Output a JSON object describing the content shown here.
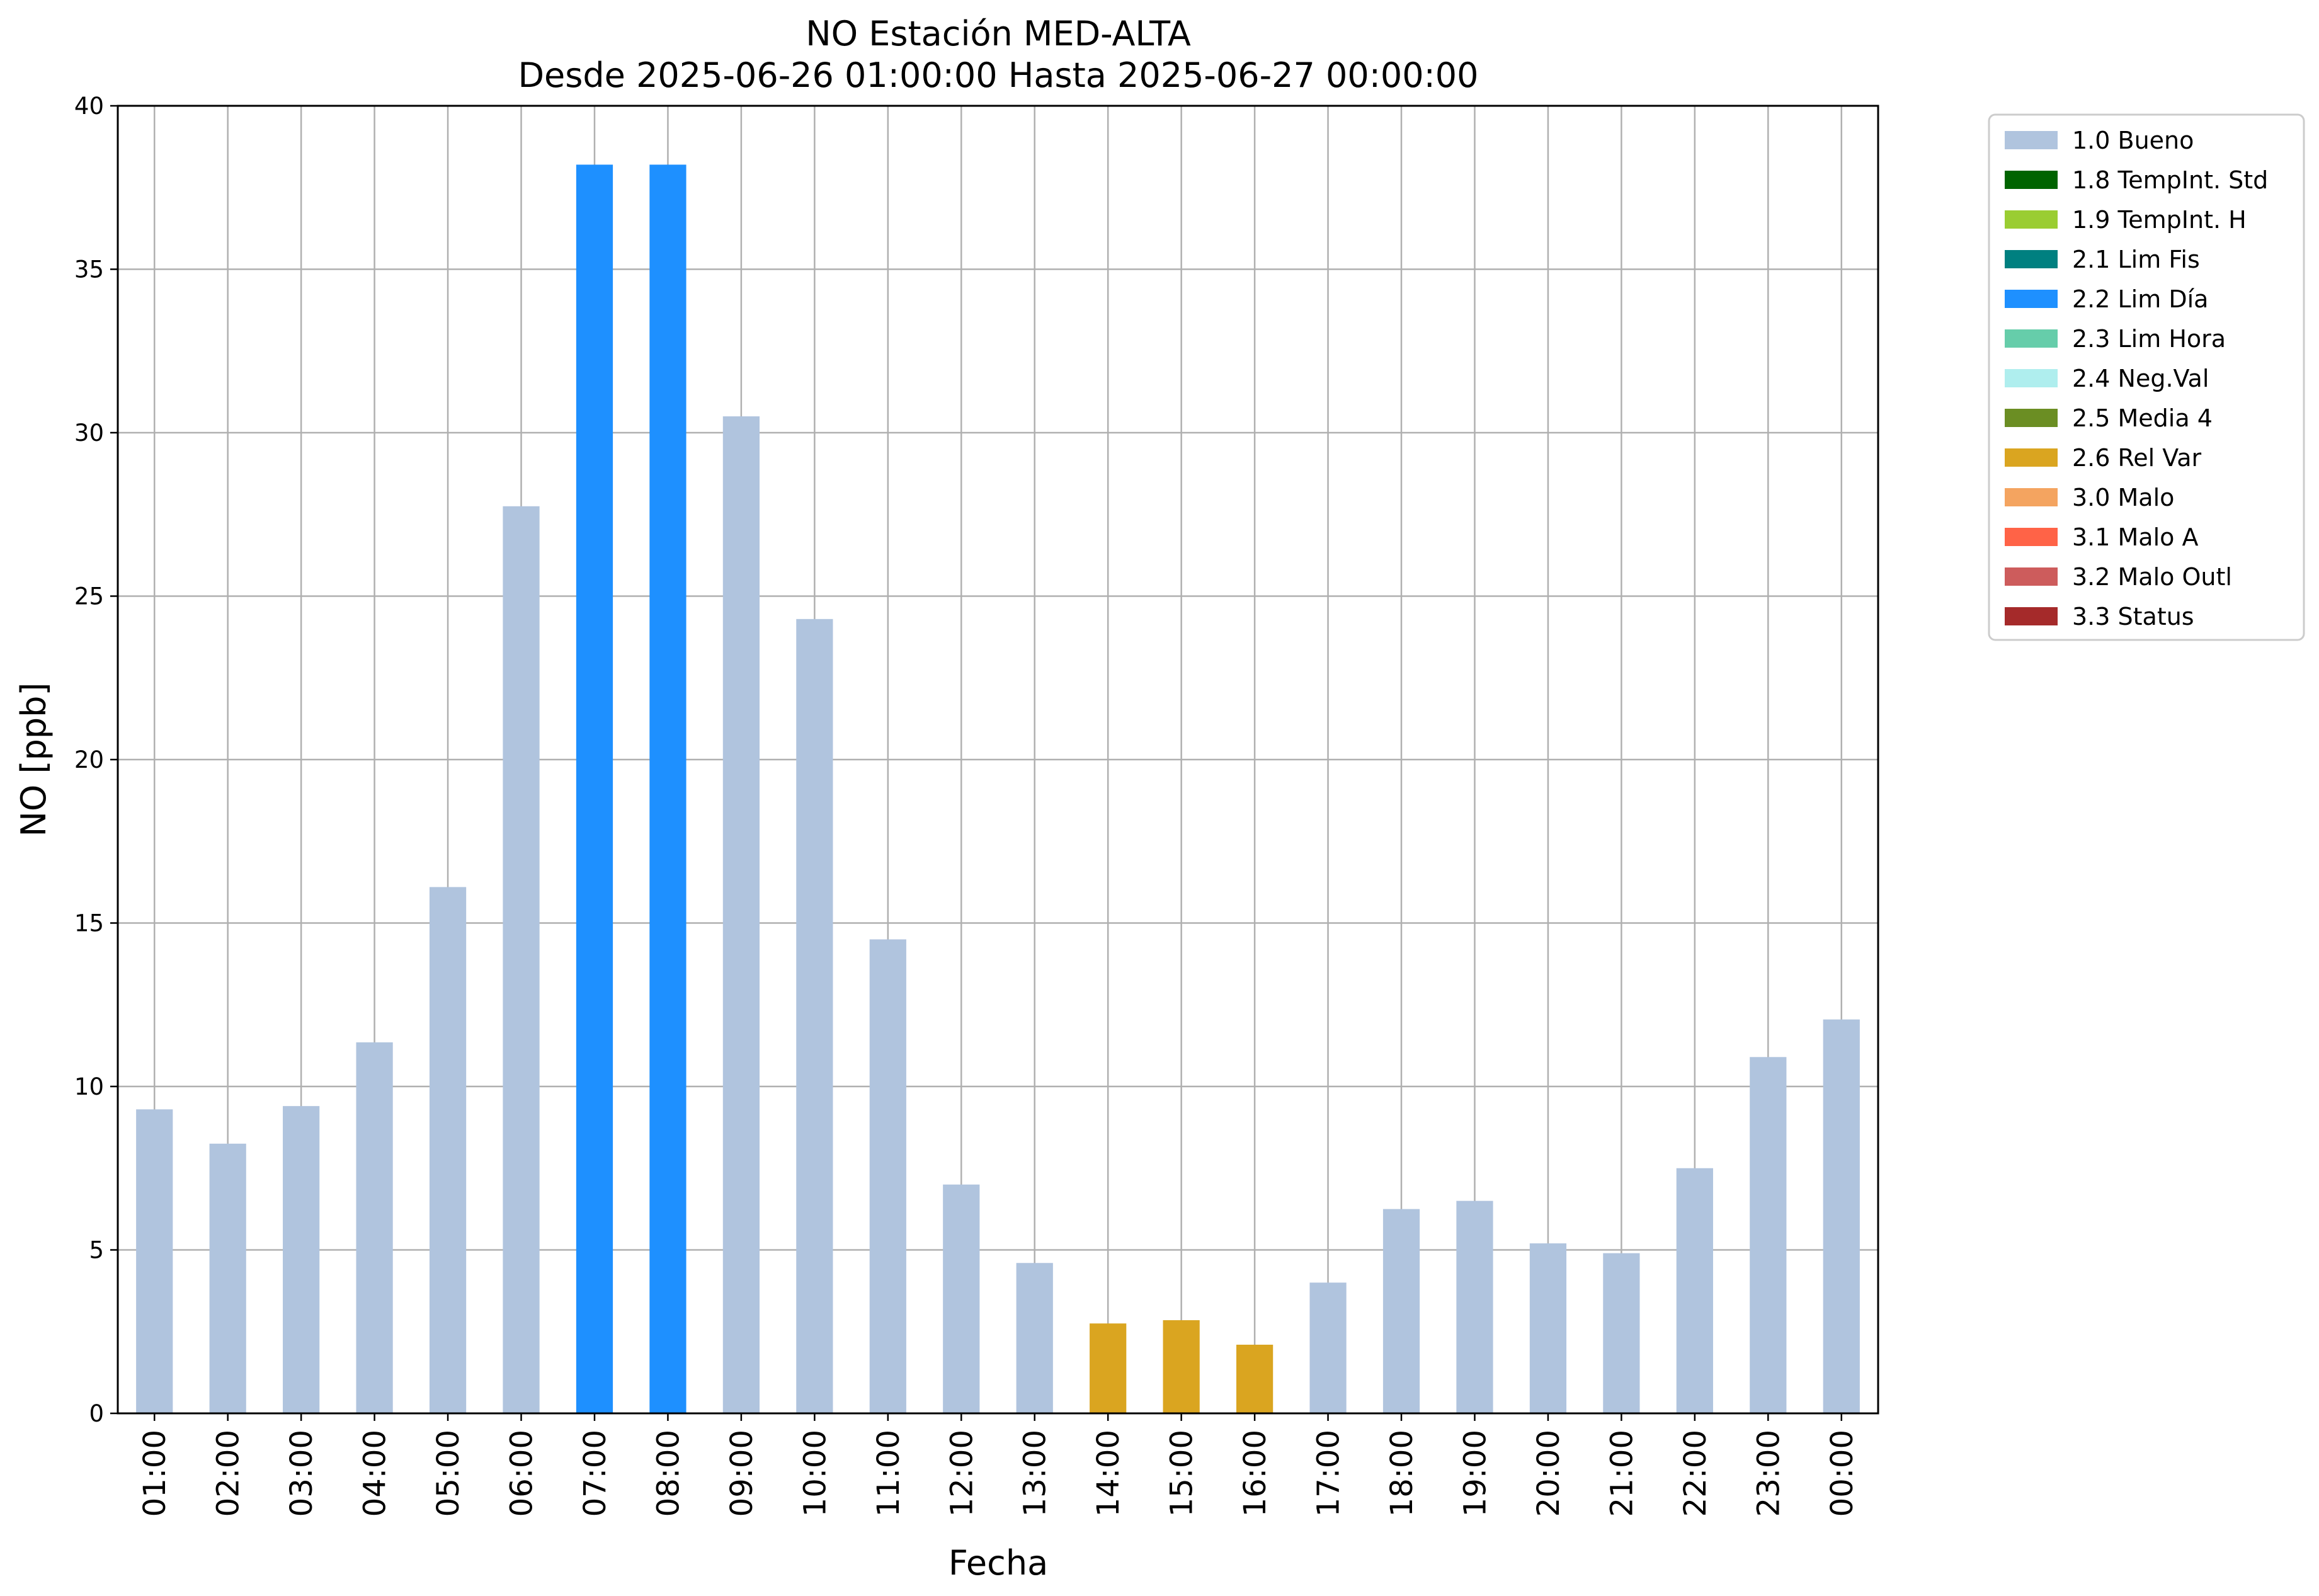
{
  "chart_data": {
    "type": "bar",
    "title": "NO Estación MED-ALTA",
    "subtitle": "Desde 2025-06-26 01:00:00 Hasta 2025-06-27 00:00:00",
    "xlabel": "Fecha",
    "ylabel": "NO [ppb]",
    "ylim": [
      0,
      40
    ],
    "yticks": [
      "0",
      "5",
      "10",
      "15",
      "20",
      "25",
      "30",
      "35",
      "40"
    ],
    "grid": true,
    "legend_position": "outside right, top",
    "categories": [
      "01:00",
      "02:00",
      "03:00",
      "04:00",
      "05:00",
      "06:00",
      "07:00",
      "08:00",
      "09:00",
      "10:00",
      "11:00",
      "12:00",
      "13:00",
      "14:00",
      "15:00",
      "16:00",
      "17:00",
      "18:00",
      "19:00",
      "20:00",
      "21:00",
      "22:00",
      "23:00",
      "00:00"
    ],
    "values": [
      9.3,
      8.25,
      9.4,
      11.35,
      16.1,
      27.75,
      38.2,
      38.2,
      30.5,
      24.3,
      14.5,
      7.0,
      4.6,
      2.75,
      2.85,
      2.1,
      4.0,
      6.25,
      6.5,
      5.2,
      4.9,
      7.5,
      10.9,
      12.05
    ],
    "flags": [
      "1.0 Bueno",
      "1.0 Bueno",
      "1.0 Bueno",
      "1.0 Bueno",
      "1.0 Bueno",
      "1.0 Bueno",
      "2.2 Lim Día",
      "2.2 Lim Día",
      "1.0 Bueno",
      "1.0 Bueno",
      "1.0 Bueno",
      "1.0 Bueno",
      "1.0 Bueno",
      "2.6 Rel Var",
      "2.6 Rel Var",
      "2.6 Rel Var",
      "1.0 Bueno",
      "1.0 Bueno",
      "1.0 Bueno",
      "1.0 Bueno",
      "1.0 Bueno",
      "1.0 Bueno",
      "1.0 Bueno",
      "1.0 Bueno"
    ],
    "legend": [
      {
        "label": "1.0 Bueno",
        "color": "#b0c4de"
      },
      {
        "label": "1.8 TempInt. Std",
        "color": "#006400"
      },
      {
        "label": "1.9 TempInt. H",
        "color": "#9acd32"
      },
      {
        "label": "2.1 Lim Fis",
        "color": "#008080"
      },
      {
        "label": "2.2 Lim Día",
        "color": "#1e90ff"
      },
      {
        "label": "2.3 Lim Hora",
        "color": "#66cdaa"
      },
      {
        "label": "2.4 Neg.Val",
        "color": "#afeeee"
      },
      {
        "label": "2.5 Media 4",
        "color": "#6b8e23"
      },
      {
        "label": "2.6 Rel Var",
        "color": "#daa520"
      },
      {
        "label": "3.0 Malo",
        "color": "#f4a460"
      },
      {
        "label": "3.1 Malo A",
        "color": "#ff6347"
      },
      {
        "label": "3.2 Malo Outl",
        "color": "#cd5c5c"
      },
      {
        "label": "3.3 Status",
        "color": "#a52a2a"
      }
    ]
  }
}
